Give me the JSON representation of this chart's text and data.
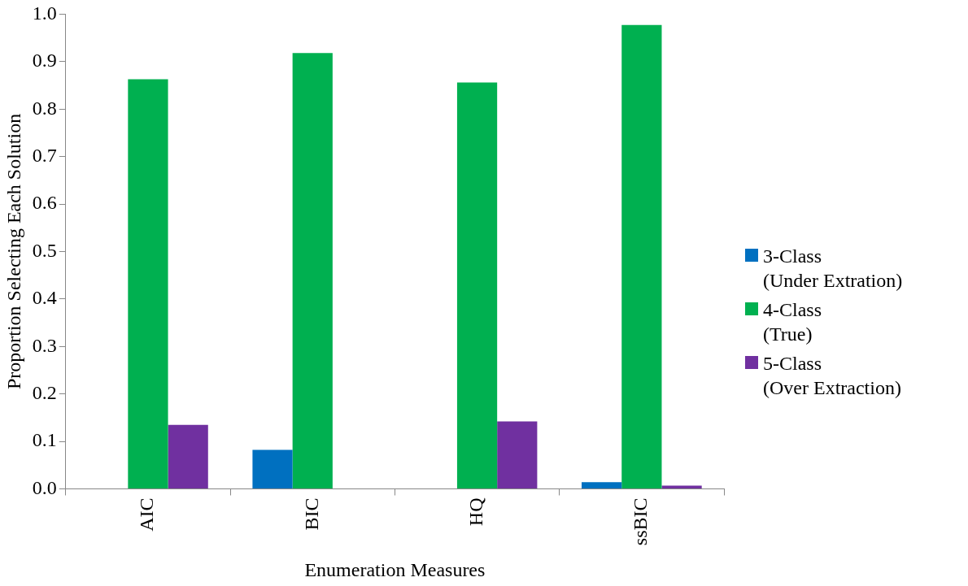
{
  "chart_data": {
    "type": "bar",
    "xlabel": "Enumeration Measures",
    "ylabel": "Proportion Selecting Each Solution",
    "categories": [
      "AIC",
      "BIC",
      "HQ",
      "ssBIC"
    ],
    "series": [
      {
        "name": "3-Class\n(Under Extration)",
        "color": "#0070c0",
        "values": [
          0,
          0.082,
          0,
          0.014
        ]
      },
      {
        "name": "4-Class\n(True)",
        "color": "#00b050",
        "values": [
          0.863,
          0.918,
          0.856,
          0.977
        ]
      },
      {
        "name": "5-Class\n(Over Extraction)",
        "color": "#7030a0",
        "values": [
          0.135,
          0,
          0.142,
          0.007
        ]
      }
    ],
    "ylim": [
      0,
      1
    ],
    "yticks": [
      {
        "value": 0,
        "label": "0.0"
      },
      0.1,
      0.2,
      0.3,
      0.4,
      0.5,
      0.6,
      0.7,
      0.8,
      0.9,
      {
        "value": 1,
        "label": "1.0"
      }
    ],
    "legend": "right"
  }
}
